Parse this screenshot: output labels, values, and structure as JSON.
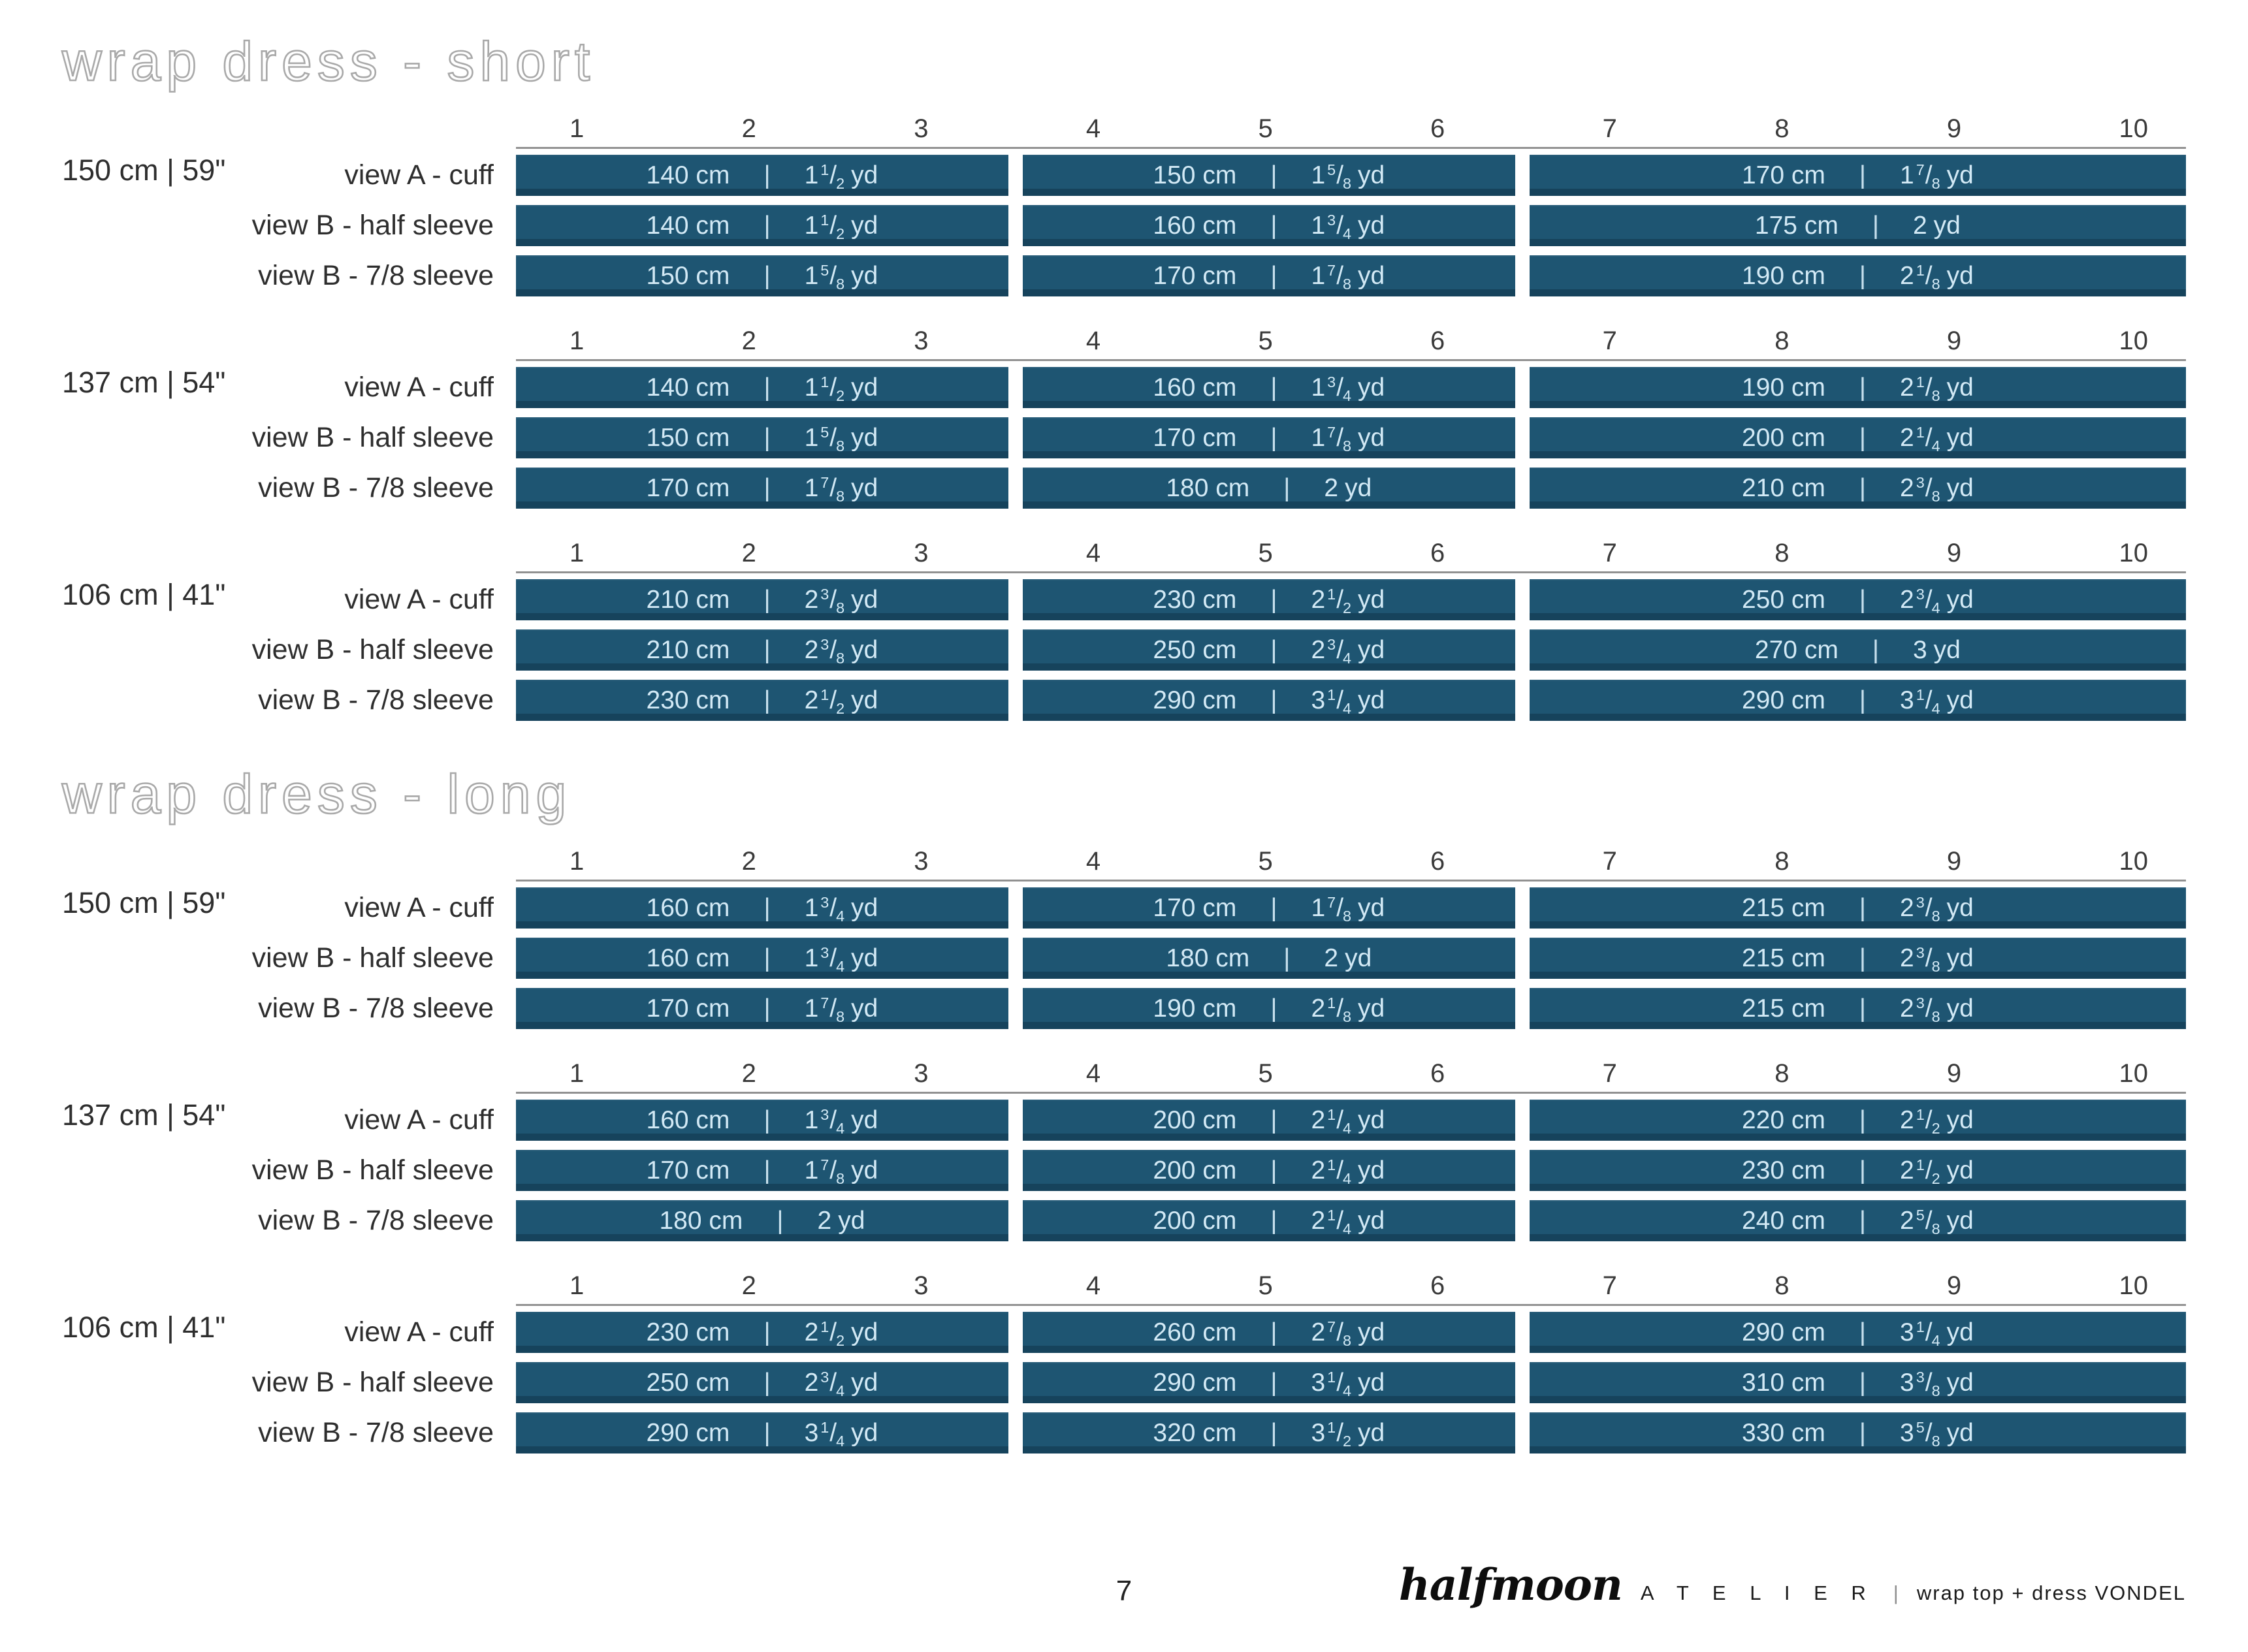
{
  "page": {
    "number": "7"
  },
  "footer": {
    "brand_script": "halfmoon",
    "brand_atelier": "A T E L I E R",
    "separator": "|",
    "pattern_label": "wrap top + dress VONDEL"
  },
  "colors": {
    "bar_fill": "#1e5572",
    "bar_text": "#d2e9f5",
    "ruler_line": "#919191",
    "label_text": "#2e2e2e",
    "title_outline": "#a9a9a9",
    "background": "#ffffff"
  },
  "chart_data": [
    {
      "type": "table",
      "title": "wrap dress - short",
      "x_axis_sizes": [
        "1",
        "2",
        "3",
        "4",
        "5",
        "6",
        "7",
        "8",
        "9",
        "10"
      ],
      "column_groups": [
        "sizes 1-3",
        "sizes 4-6",
        "sizes 7-10"
      ],
      "sections": [
        {
          "fabric_width": "150 cm | 59\"",
          "rows": [
            {
              "view": "view A - cuff",
              "values": [
                {
                  "cm": "140 cm",
                  "yd": "1 1/2"
                },
                {
                  "cm": "150 cm",
                  "yd": "1 5/8"
                },
                {
                  "cm": "170 cm",
                  "yd": "1 7/8"
                }
              ]
            },
            {
              "view": "view B - half sleeve",
              "values": [
                {
                  "cm": "140 cm",
                  "yd": "1 1/2"
                },
                {
                  "cm": "160 cm",
                  "yd": "1 3/4"
                },
                {
                  "cm": "175 cm",
                  "yd": "2"
                }
              ]
            },
            {
              "view": "view B - 7/8 sleeve",
              "values": [
                {
                  "cm": "150 cm",
                  "yd": "1 5/8"
                },
                {
                  "cm": "170 cm",
                  "yd": "1 7/8"
                },
                {
                  "cm": "190 cm",
                  "yd": "2 1/8"
                }
              ]
            }
          ]
        },
        {
          "fabric_width": "137 cm | 54\"",
          "rows": [
            {
              "view": "view A - cuff",
              "values": [
                {
                  "cm": "140 cm",
                  "yd": "1 1/2"
                },
                {
                  "cm": "160 cm",
                  "yd": "1 3/4"
                },
                {
                  "cm": "190 cm",
                  "yd": "2 1/8"
                }
              ]
            },
            {
              "view": "view B - half sleeve",
              "values": [
                {
                  "cm": "150 cm",
                  "yd": "1 5/8"
                },
                {
                  "cm": "170 cm",
                  "yd": "1 7/8"
                },
                {
                  "cm": "200 cm",
                  "yd": "2 1/4"
                }
              ]
            },
            {
              "view": "view B - 7/8 sleeve",
              "values": [
                {
                  "cm": "170 cm",
                  "yd": "1 7/8"
                },
                {
                  "cm": "180 cm",
                  "yd": "2"
                },
                {
                  "cm": "210 cm",
                  "yd": "2 3/8"
                }
              ]
            }
          ]
        },
        {
          "fabric_width": "106 cm | 41\"",
          "rows": [
            {
              "view": "view A - cuff",
              "values": [
                {
                  "cm": "210 cm",
                  "yd": "2 3/8"
                },
                {
                  "cm": "230 cm",
                  "yd": "2 1/2"
                },
                {
                  "cm": "250 cm",
                  "yd": "2 3/4"
                }
              ]
            },
            {
              "view": "view B - half sleeve",
              "values": [
                {
                  "cm": "210 cm",
                  "yd": "2 3/8"
                },
                {
                  "cm": "250 cm",
                  "yd": "2 3/4"
                },
                {
                  "cm": "270 cm",
                  "yd": "3"
                }
              ]
            },
            {
              "view": "view B - 7/8 sleeve",
              "values": [
                {
                  "cm": "230 cm",
                  "yd": "2 1/2"
                },
                {
                  "cm": "290 cm",
                  "yd": "3 1/4"
                },
                {
                  "cm": "290 cm",
                  "yd": "3 1/4"
                }
              ]
            }
          ]
        }
      ]
    },
    {
      "type": "table",
      "title": "wrap dress - long",
      "x_axis_sizes": [
        "1",
        "2",
        "3",
        "4",
        "5",
        "6",
        "7",
        "8",
        "9",
        "10"
      ],
      "column_groups": [
        "sizes 1-3",
        "sizes 4-6",
        "sizes 7-10"
      ],
      "sections": [
        {
          "fabric_width": "150 cm | 59\"",
          "rows": [
            {
              "view": "view A - cuff",
              "values": [
                {
                  "cm": "160 cm",
                  "yd": "1 3/4"
                },
                {
                  "cm": "170 cm",
                  "yd": "1 7/8"
                },
                {
                  "cm": "215 cm",
                  "yd": "2 3/8"
                }
              ]
            },
            {
              "view": "view B - half sleeve",
              "values": [
                {
                  "cm": "160 cm",
                  "yd": "1 3/4"
                },
                {
                  "cm": "180 cm",
                  "yd": "2"
                },
                {
                  "cm": "215 cm",
                  "yd": "2 3/8"
                }
              ]
            },
            {
              "view": "view B - 7/8 sleeve",
              "values": [
                {
                  "cm": "170 cm",
                  "yd": "1 7/8"
                },
                {
                  "cm": "190 cm",
                  "yd": "2 1/8"
                },
                {
                  "cm": "215 cm",
                  "yd": "2 3/8"
                }
              ]
            }
          ]
        },
        {
          "fabric_width": "137 cm | 54\"",
          "rows": [
            {
              "view": "view A - cuff",
              "values": [
                {
                  "cm": "160 cm",
                  "yd": "1 3/4"
                },
                {
                  "cm": "200 cm",
                  "yd": "2 1/4"
                },
                {
                  "cm": "220 cm",
                  "yd": "2 1/2"
                }
              ]
            },
            {
              "view": "view B - half sleeve",
              "values": [
                {
                  "cm": "170 cm",
                  "yd": "1 7/8"
                },
                {
                  "cm": "200 cm",
                  "yd": "2 1/4"
                },
                {
                  "cm": "230 cm",
                  "yd": "2 1/2"
                }
              ]
            },
            {
              "view": "view B - 7/8 sleeve",
              "values": [
                {
                  "cm": "180 cm",
                  "yd": "2"
                },
                {
                  "cm": "200 cm",
                  "yd": "2 1/4"
                },
                {
                  "cm": "240 cm",
                  "yd": "2 5/8"
                }
              ]
            }
          ]
        },
        {
          "fabric_width": "106 cm | 41\"",
          "rows": [
            {
              "view": "view A - cuff",
              "values": [
                {
                  "cm": "230 cm",
                  "yd": "2 1/2"
                },
                {
                  "cm": "260 cm",
                  "yd": "2 7/8"
                },
                {
                  "cm": "290 cm",
                  "yd": "3 1/4"
                }
              ]
            },
            {
              "view": "view B - half sleeve",
              "values": [
                {
                  "cm": "250 cm",
                  "yd": "2 3/4"
                },
                {
                  "cm": "290 cm",
                  "yd": "3 1/4"
                },
                {
                  "cm": "310 cm",
                  "yd": "3 3/8"
                }
              ]
            },
            {
              "view": "view B - 7/8 sleeve",
              "values": [
                {
                  "cm": "290 cm",
                  "yd": "3 1/4"
                },
                {
                  "cm": "320 cm",
                  "yd": "3 1/2"
                },
                {
                  "cm": "330 cm",
                  "yd": "3 5/8"
                }
              ]
            }
          ]
        }
      ]
    }
  ]
}
